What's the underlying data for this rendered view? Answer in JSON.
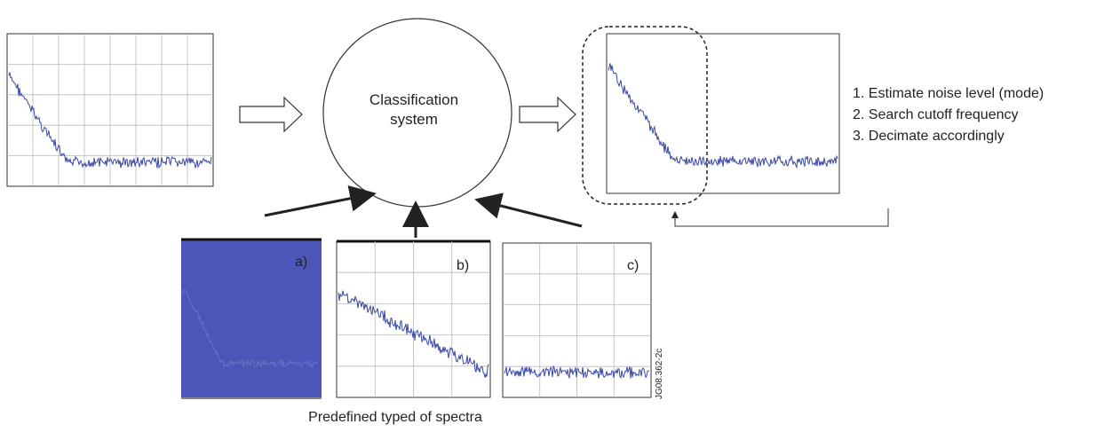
{
  "center_node": {
    "line1": "Classification",
    "line2": "system"
  },
  "panels": {
    "a": "a)",
    "b": "b)",
    "c": "c)"
  },
  "steps": [
    "1. Estimate noise level (mode)",
    "2. Search cutoff frequency",
    "3. Decimate accordingly"
  ],
  "bottom_caption": "Predefined typed of spectra",
  "figure_code": "JG08.362-2c",
  "colors": {
    "trace": "#3a48a8",
    "panel_a_fill": "#4b56b8",
    "grid": "#b9b9b9",
    "line": "#222222"
  }
}
